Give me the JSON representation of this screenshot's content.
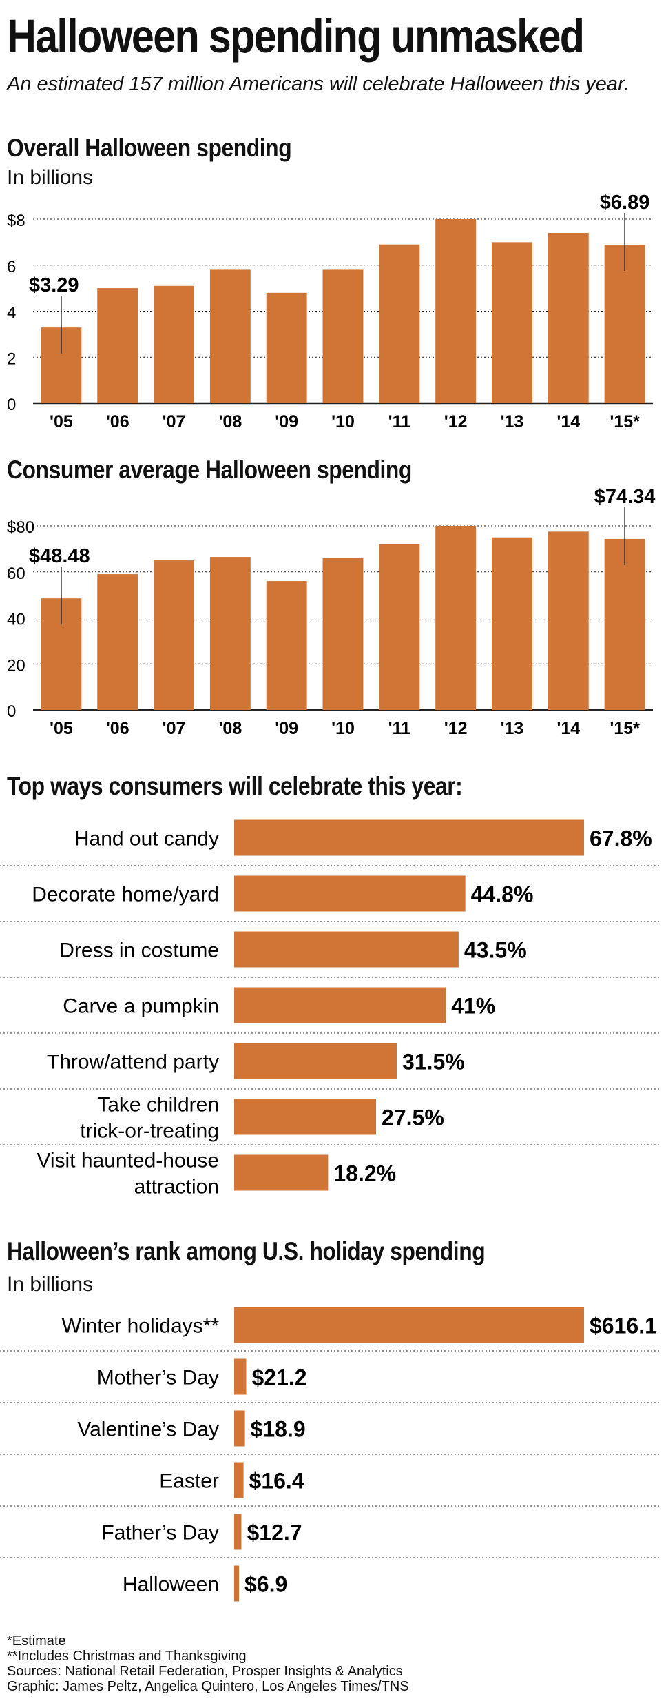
{
  "title": "Halloween spending unmasked",
  "subtitle": "An estimated 157 million Americans will celebrate Halloween this year.",
  "colors": {
    "bar": "#D07535",
    "text": "#111111",
    "axis": "#222222",
    "divider": "#777777"
  },
  "chart_data": [
    {
      "type": "bar",
      "title": "Overall Halloween spending",
      "unit": "In billions",
      "categories": [
        "'05",
        "'06",
        "'07",
        "'08",
        "'09",
        "'10",
        "'11",
        "'12",
        "'13",
        "'14",
        "'15*"
      ],
      "values": [
        3.29,
        5.0,
        5.1,
        5.8,
        4.8,
        5.8,
        6.9,
        8.0,
        7.0,
        7.4,
        6.89
      ],
      "ylim": [
        0,
        8
      ],
      "yticks": [
        0,
        2,
        4,
        6,
        8
      ],
      "ytick_labels": [
        "0",
        "2",
        "4",
        "6",
        "$8"
      ],
      "grid": true,
      "annotations": [
        {
          "index": 0,
          "label": "$3.29"
        },
        {
          "index": 10,
          "label": "$6.89"
        }
      ]
    },
    {
      "type": "bar",
      "title": "Consumer average Halloween spending",
      "categories": [
        "'05",
        "'06",
        "'07",
        "'08",
        "'09",
        "'10",
        "'11",
        "'12",
        "'13",
        "'14",
        "'15*"
      ],
      "values": [
        48.48,
        59,
        65,
        66.5,
        56,
        66,
        72,
        80,
        75,
        77.5,
        74.34
      ],
      "ylim": [
        0,
        80
      ],
      "yticks": [
        0,
        20,
        40,
        60,
        80
      ],
      "ytick_labels": [
        "0",
        "20",
        "40",
        "60",
        "$80"
      ],
      "grid": true,
      "annotations": [
        {
          "index": 0,
          "label": "$48.48"
        },
        {
          "index": 10,
          "label": "$74.34"
        }
      ]
    },
    {
      "type": "bar",
      "orientation": "horizontal",
      "title": "Top ways consumers will celebrate this year:",
      "categories": [
        [
          "Hand out candy"
        ],
        [
          "Decorate home/yard"
        ],
        [
          "Dress in costume"
        ],
        [
          "Carve a pumpkin"
        ],
        [
          "Throw/attend party"
        ],
        [
          "Take children",
          "trick-or-treating"
        ],
        [
          "Visit haunted-house",
          "attraction"
        ]
      ],
      "values": [
        67.8,
        44.8,
        43.5,
        41,
        31.5,
        27.5,
        18.2
      ],
      "value_labels": [
        "67.8%",
        "44.8%",
        "43.5%",
        "41%",
        "31.5%",
        "27.5%",
        "18.2%"
      ],
      "xlim": [
        0,
        67.8
      ]
    },
    {
      "type": "bar",
      "orientation": "horizontal",
      "title": "Halloween’s rank among U.S. holiday spending",
      "unit": "In billions",
      "categories": [
        [
          "Winter holidays**"
        ],
        [
          "Mother’s Day"
        ],
        [
          "Valentine’s Day"
        ],
        [
          "Easter"
        ],
        [
          "Father’s Day"
        ],
        [
          "Halloween"
        ]
      ],
      "values": [
        616.1,
        21.2,
        18.9,
        16.4,
        12.7,
        6.9
      ],
      "value_labels": [
        "$616.1",
        "$21.2",
        "$18.9",
        "$16.4",
        "$12.7",
        "$6.9"
      ],
      "xlim": [
        0,
        616.1
      ]
    }
  ],
  "footnotes": [
    "*Estimate",
    "**Includes Christmas and Thanksgiving",
    "Sources: National Retail Federation, Prosper Insights & Analytics",
    "Graphic: James Peltz, Angelica Quintero, Los Angeles Times/TNS"
  ]
}
